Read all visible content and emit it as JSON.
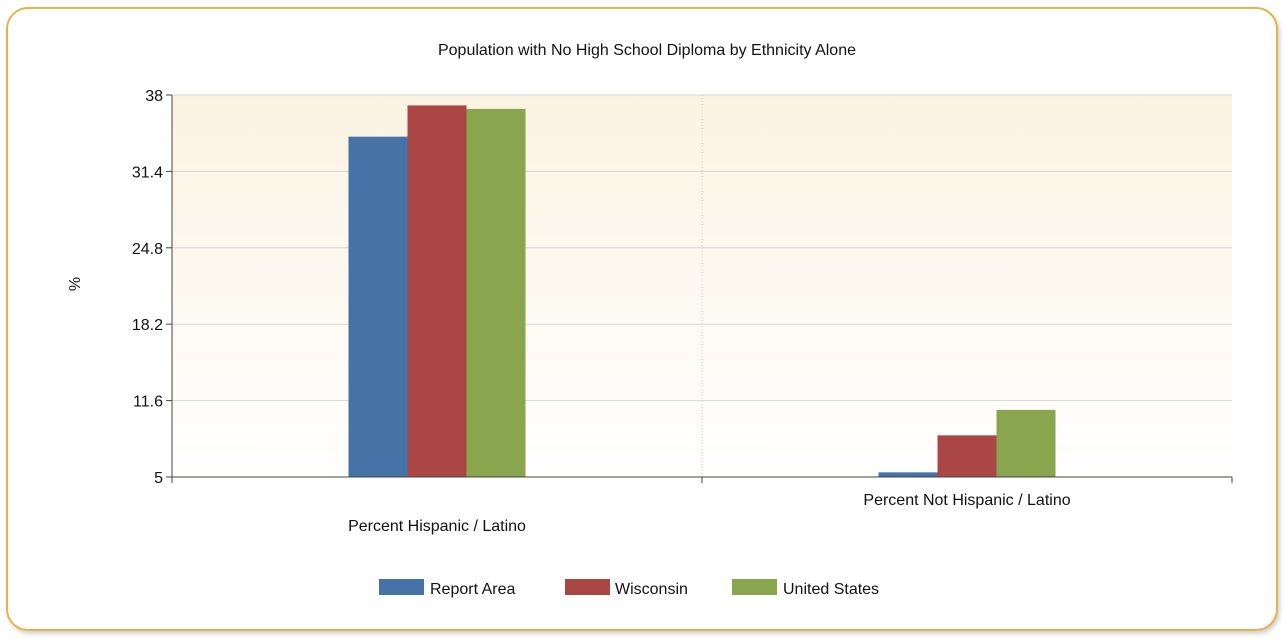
{
  "chart_data": {
    "type": "bar",
    "title": "Population with No High School Diploma by Ethnicity Alone",
    "xlabel": "",
    "ylabel": "%",
    "ylim": [
      5,
      38
    ],
    "yticks": [
      "5",
      "11.6",
      "18.2",
      "24.8",
      "31.4",
      "38"
    ],
    "categories": [
      "Percent Hispanic / Latino",
      "Percent Not Hispanic / Latino"
    ],
    "series": [
      {
        "name": "Report Area",
        "color": "#4572a7",
        "values": [
          34.4,
          5.4
        ]
      },
      {
        "name": "Wisconsin",
        "color": "#aa4643",
        "values": [
          37.1,
          8.6
        ]
      },
      {
        "name": "United States",
        "color": "#89a54e",
        "values": [
          36.8,
          10.8
        ]
      }
    ],
    "grid": true,
    "legend": "bottom"
  }
}
